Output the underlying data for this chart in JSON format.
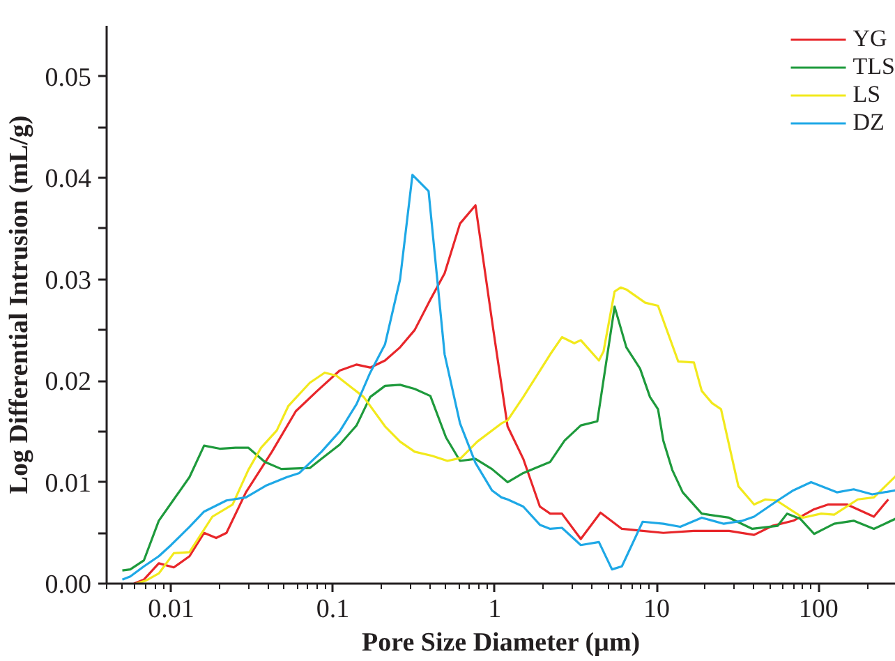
{
  "chart_data": {
    "type": "line",
    "xlabel": "Pore Size Diameter (µm)",
    "ylabel": "Log Differential Intrusion (mL/g)",
    "log": "x",
    "xlim": [
      0.004,
      300
    ],
    "ylim": [
      0,
      0.055
    ],
    "xticks": [
      0.01,
      0.1,
      1,
      10,
      100
    ],
    "yticks": [
      {
        "value": 0,
        "label": "0.00"
      },
      {
        "value": 0.005,
        "label": null
      },
      {
        "value": 0.01,
        "label": "0.01"
      },
      {
        "value": 0.015,
        "label": null
      },
      {
        "value": 0.02,
        "label": "0.02"
      },
      {
        "value": 0.025,
        "label": null
      },
      {
        "value": 0.03,
        "label": "0.03"
      },
      {
        "value": 0.035,
        "label": null
      },
      {
        "value": 0.04,
        "label": "0.04"
      },
      {
        "value": 0.045,
        "label": null
      },
      {
        "value": 0.05,
        "label": "0.05"
      }
    ],
    "grid": false,
    "legend": "top right",
    "marker": "none",
    "line_style": "solid",
    "series": [
      {
        "name": "YG",
        "color": "#e8262a",
        "x": [
          0.0059,
          0.0068,
          0.0084,
          0.0104,
          0.013,
          0.016,
          0.019,
          0.022,
          0.029,
          0.042,
          0.059,
          0.08,
          0.11,
          0.14,
          0.17,
          0.21,
          0.26,
          0.32,
          0.4,
          0.49,
          0.61,
          0.76,
          0.98,
          1.2,
          1.5,
          1.9,
          2.2,
          2.6,
          3.4,
          4.5,
          6.1,
          11,
          17,
          28,
          40,
          52,
          70,
          93,
          115,
          150,
          220,
          270
        ],
        "values": [
          0,
          0.0004,
          0.002,
          0.0016,
          0.0027,
          0.005,
          0.0045,
          0.005,
          0.009,
          0.013,
          0.017,
          0.019,
          0.021,
          0.0216,
          0.0213,
          0.022,
          0.0233,
          0.025,
          0.028,
          0.0306,
          0.0355,
          0.0373,
          0.025,
          0.0155,
          0.0123,
          0.0076,
          0.0069,
          0.0069,
          0.0044,
          0.007,
          0.0054,
          0.005,
          0.0052,
          0.0052,
          0.0048,
          0.0057,
          0.0062,
          0.0073,
          0.0078,
          0.0078,
          0.0066,
          0.0083
        ]
      },
      {
        "name": "TLS",
        "color": "#1e9a3c",
        "x": [
          0.005,
          0.0056,
          0.0068,
          0.0084,
          0.0104,
          0.013,
          0.016,
          0.02,
          0.025,
          0.03,
          0.038,
          0.048,
          0.072,
          0.085,
          0.11,
          0.14,
          0.17,
          0.21,
          0.26,
          0.32,
          0.4,
          0.5,
          0.61,
          0.76,
          0.96,
          1.2,
          1.5,
          2.2,
          2.7,
          3.4,
          4.3,
          5.5,
          6.5,
          7.9,
          9.1,
          10.2,
          11,
          12.5,
          14.5,
          19,
          28,
          39,
          56,
          64,
          77,
          94,
          125,
          165,
          220,
          300
        ],
        "values": [
          0.0013,
          0.0014,
          0.0023,
          0.0062,
          0.0083,
          0.0105,
          0.0136,
          0.0133,
          0.0134,
          0.0134,
          0.012,
          0.0113,
          0.0114,
          0.0123,
          0.0137,
          0.0156,
          0.0184,
          0.0195,
          0.0196,
          0.0192,
          0.0185,
          0.0144,
          0.0121,
          0.0123,
          0.0113,
          0.01,
          0.0109,
          0.012,
          0.0141,
          0.0156,
          0.016,
          0.0273,
          0.0233,
          0.0212,
          0.0184,
          0.0172,
          0.0141,
          0.0112,
          0.009,
          0.0069,
          0.0065,
          0.0054,
          0.0057,
          0.0069,
          0.0064,
          0.0049,
          0.0059,
          0.0062,
          0.0054,
          0.0064
        ]
      },
      {
        "name": "LS",
        "color": "#f2e91c",
        "x": [
          0.0061,
          0.007,
          0.0084,
          0.0104,
          0.013,
          0.018,
          0.024,
          0.03,
          0.036,
          0.045,
          0.053,
          0.072,
          0.089,
          0.105,
          0.155,
          0.21,
          0.26,
          0.32,
          0.41,
          0.51,
          0.62,
          0.78,
          1.1,
          1.2,
          1.5,
          2.2,
          2.6,
          3.1,
          3.4,
          4.4,
          4.7,
          5.5,
          6,
          6.5,
          8.5,
          10.2,
          13.6,
          17,
          19,
          22,
          25,
          32,
          40,
          47,
          55,
          80,
          104,
          125,
          175,
          220,
          300
        ],
        "values": [
          0,
          0.0003,
          0.001,
          0.003,
          0.0031,
          0.0066,
          0.0078,
          0.0112,
          0.0134,
          0.0151,
          0.0175,
          0.0198,
          0.0208,
          0.0205,
          0.0184,
          0.0155,
          0.014,
          0.013,
          0.0126,
          0.0121,
          0.0124,
          0.014,
          0.0158,
          0.0161,
          0.0184,
          0.0226,
          0.0243,
          0.0237,
          0.024,
          0.022,
          0.0229,
          0.0288,
          0.0292,
          0.029,
          0.0277,
          0.0274,
          0.0219,
          0.0218,
          0.019,
          0.0178,
          0.0172,
          0.0096,
          0.0078,
          0.0083,
          0.0082,
          0.0065,
          0.0069,
          0.0068,
          0.0083,
          0.0085,
          0.0106
        ]
      },
      {
        "name": "DZ",
        "color": "#1ea8e6",
        "x": [
          0.005,
          0.0056,
          0.0068,
          0.0084,
          0.01,
          0.013,
          0.016,
          0.022,
          0.029,
          0.039,
          0.052,
          0.062,
          0.085,
          0.11,
          0.14,
          0.17,
          0.21,
          0.26,
          0.31,
          0.39,
          0.49,
          0.61,
          0.76,
          0.96,
          1.1,
          1.2,
          1.5,
          1.9,
          2.2,
          2.6,
          3.4,
          4.4,
          5.3,
          6.1,
          8.2,
          11,
          14,
          19,
          26,
          34,
          40,
          56,
          70,
          90,
          130,
          165,
          215,
          300
        ],
        "values": [
          0.0004,
          0.0007,
          0.0017,
          0.0027,
          0.0038,
          0.0056,
          0.0071,
          0.0082,
          0.0085,
          0.0097,
          0.0105,
          0.0109,
          0.013,
          0.015,
          0.0177,
          0.0208,
          0.0236,
          0.03,
          0.0403,
          0.0387,
          0.0226,
          0.0158,
          0.0119,
          0.0092,
          0.0085,
          0.0083,
          0.0076,
          0.0058,
          0.0054,
          0.0055,
          0.0038,
          0.0041,
          0.0014,
          0.0017,
          0.0061,
          0.0059,
          0.0056,
          0.0065,
          0.0059,
          0.0062,
          0.0066,
          0.0082,
          0.0092,
          0.01,
          0.009,
          0.0093,
          0.0088,
          0.0092
        ]
      }
    ]
  }
}
